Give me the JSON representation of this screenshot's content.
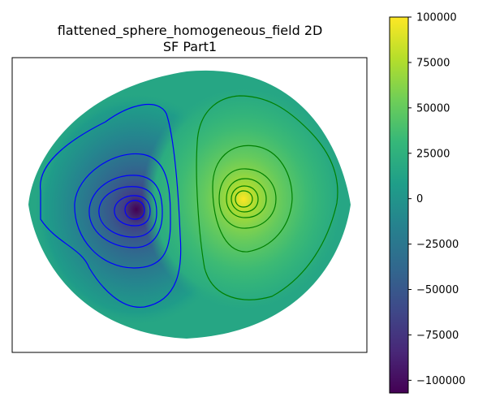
{
  "chart_data": {
    "type": "heatmap",
    "title": "flattened_sphere_homogeneous_field 2D",
    "subtitle": "SF Part1",
    "xlabel": "",
    "ylabel": "",
    "grid": false,
    "colormap": "viridis",
    "colorbar": {
      "vmin": -107000,
      "vmax": 100000,
      "ticks": [
        100000,
        75000,
        50000,
        25000,
        0,
        -25000,
        -50000,
        -75000,
        -100000
      ],
      "tick_labels": [
        "100000",
        "75000",
        "50000",
        "25000",
        "0",
        "−25000",
        "−50000",
        "−75000",
        "−100000"
      ]
    },
    "background_value": 15000,
    "field_extrema": [
      {
        "kind": "minimum",
        "value": -107000
      },
      {
        "kind": "maximum",
        "value": 100000
      }
    ],
    "contour_colors": {
      "negative": "#0000ff",
      "positive": "#008000"
    },
    "colors": {
      "viridis_stops": [
        "#440154",
        "#482878",
        "#3e4989",
        "#31688e",
        "#26828e",
        "#1f9e89",
        "#35b779",
        "#6ece58",
        "#b5de2b",
        "#fde725"
      ]
    }
  }
}
